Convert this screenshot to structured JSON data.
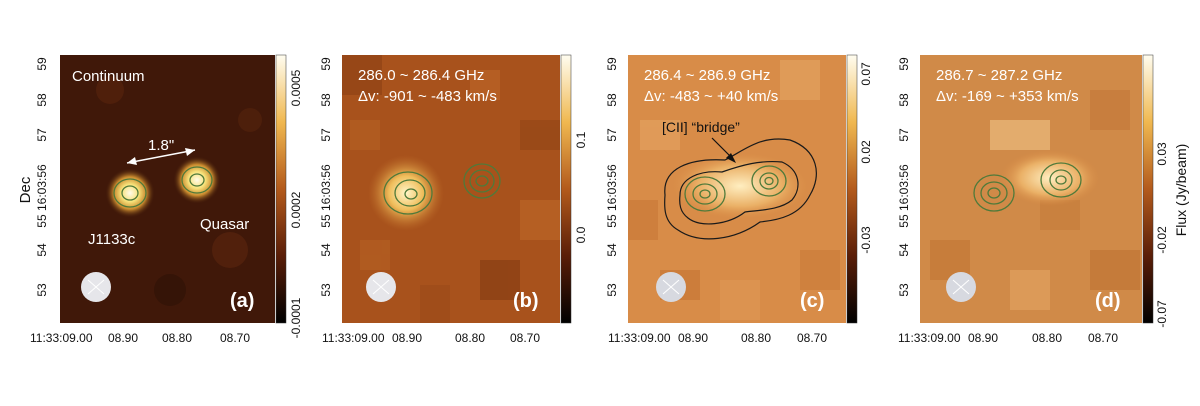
{
  "figure": {
    "y_axis_label": "Dec",
    "colorbar_label": "Flux (Jy/beam)",
    "dec_ticks": [
      "59",
      "58",
      "57",
      "55 16:03:56",
      "54",
      "53"
    ],
    "ra_ticks": [
      "11:33:09.00",
      "08.90",
      "08.80",
      "08.70"
    ],
    "colors": {
      "map_dark": "#3a1508",
      "map_mid": "#a0521e",
      "map_bright": "#fffbe8",
      "contour_green": "#4f7a3a",
      "contour_black": "#1a1a1a"
    }
  },
  "panels": [
    {
      "tag": "(a)",
      "title": "Continuum",
      "source_labels": [
        "J1133c",
        "Quasar"
      ],
      "separation_label": "1.8\"",
      "colorbar_ticks": [
        "0.0005",
        "0.0002",
        "-0.0001"
      ]
    },
    {
      "tag": "(b)",
      "line1": "286.0 ~ 286.4 GHz",
      "line2": "Δv: -901 ~ -483 km/s",
      "colorbar_ticks": [
        "0.1",
        "0.0"
      ]
    },
    {
      "tag": "(c)",
      "line1": "286.4 ~ 286.9 GHz",
      "line2": "Δv: -483 ~ +40 km/s",
      "annotation": "[CII] “bridge”",
      "colorbar_ticks": [
        "0.07",
        "0.02",
        "-0.03"
      ]
    },
    {
      "tag": "(d)",
      "line1": "286.7 ~ 287.2 GHz",
      "line2": "Δv: -169 ~ +353 km/s",
      "colorbar_ticks": [
        "0.03",
        "-0.02",
        "-0.07"
      ]
    }
  ]
}
